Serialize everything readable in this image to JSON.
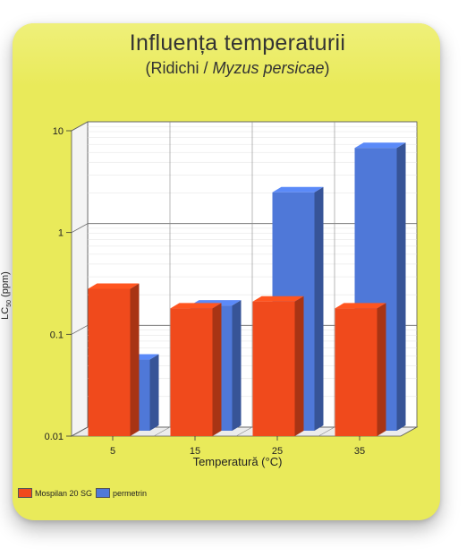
{
  "chart_data": {
    "type": "bar",
    "title": "Influența temperaturii",
    "subtitle_prefix": "(Ridichi / ",
    "subtitle_italic": "Myzus persicae",
    "subtitle_suffix": ")",
    "xlabel": "Temperatură (°C)",
    "ylabel_main": "LC",
    "ylabel_sub": "50",
    "ylabel_unit": " (ppm)",
    "y_scale": "log",
    "ylim": [
      0.01,
      10
    ],
    "y_ticks": [
      "0.01",
      "0.1",
      "1",
      "10"
    ],
    "categories": [
      "5",
      "15",
      "25",
      "35"
    ],
    "series": [
      {
        "name": "Mospilan 20 SG",
        "color": "#f04a1c",
        "values": [
          0.28,
          0.18,
          0.21,
          0.18
        ]
      },
      {
        "name": "permetrin",
        "color": "#4f78d8",
        "values": [
          0.05,
          0.17,
          2.2,
          6.0
        ]
      }
    ],
    "legend_position": "bottom-left",
    "grid": true
  }
}
